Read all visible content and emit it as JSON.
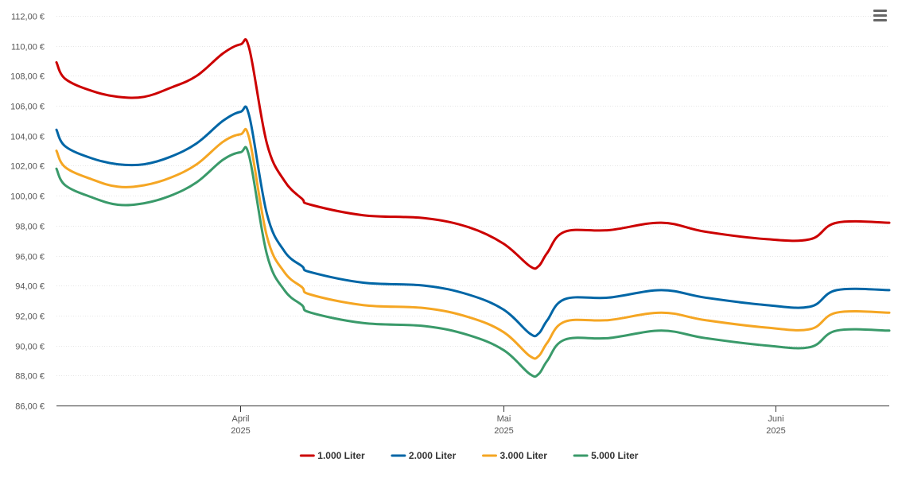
{
  "chart_data": {
    "type": "line",
    "title": "",
    "xlabel": "",
    "ylabel": "",
    "ylim": [
      86,
      112
    ],
    "y_ticks": [
      "86,00 €",
      "88,00 €",
      "90,00 €",
      "92,00 €",
      "94,00 €",
      "96,00 €",
      "98,00 €",
      "100,00 €",
      "102,00 €",
      "104,00 €",
      "106,00 €",
      "108,00 €",
      "110,00 €",
      "112,00 €"
    ],
    "y_tick_values": [
      86,
      88,
      90,
      92,
      94,
      96,
      98,
      100,
      102,
      104,
      106,
      108,
      110,
      112
    ],
    "x_range": [
      "2025-03-11",
      "2025-06-14"
    ],
    "x_ticks": [
      {
        "date": "2025-04-01",
        "month": "April",
        "year": "2025"
      },
      {
        "date": "2025-05-01",
        "month": "Mai",
        "year": "2025"
      },
      {
        "date": "2025-06-01",
        "month": "Juni",
        "year": "2025"
      }
    ],
    "grid": true,
    "legend_position": "bottom-center",
    "series": [
      {
        "name": "1.000 Liter",
        "color": "#cc0000",
        "points": [
          [
            "2025-03-11",
            108.9
          ],
          [
            "2025-03-12",
            107.8
          ],
          [
            "2025-03-15",
            107.0
          ],
          [
            "2025-03-18",
            106.6
          ],
          [
            "2025-03-21",
            106.6
          ],
          [
            "2025-03-24",
            107.2
          ],
          [
            "2025-03-27",
            108.0
          ],
          [
            "2025-03-30",
            109.5
          ],
          [
            "2025-04-01",
            110.1
          ],
          [
            "2025-04-02",
            109.8
          ],
          [
            "2025-04-04",
            103.5
          ],
          [
            "2025-04-06",
            101.0
          ],
          [
            "2025-04-08",
            99.8
          ],
          [
            "2025-04-09",
            99.4
          ],
          [
            "2025-04-15",
            98.7
          ],
          [
            "2025-04-22",
            98.5
          ],
          [
            "2025-04-27",
            97.9
          ],
          [
            "2025-05-01",
            96.8
          ],
          [
            "2025-05-04",
            95.3
          ],
          [
            "2025-05-05",
            95.3
          ],
          [
            "2025-05-06",
            96.2
          ],
          [
            "2025-05-08",
            97.6
          ],
          [
            "2025-05-13",
            97.7
          ],
          [
            "2025-05-19",
            98.2
          ],
          [
            "2025-05-24",
            97.6
          ],
          [
            "2025-05-31",
            97.1
          ],
          [
            "2025-06-05",
            97.1
          ],
          [
            "2025-06-08",
            98.2
          ],
          [
            "2025-06-14",
            98.2
          ]
        ]
      },
      {
        "name": "2.000 Liter",
        "color": "#0066a6",
        "points": [
          [
            "2025-03-11",
            104.4
          ],
          [
            "2025-03-12",
            103.3
          ],
          [
            "2025-03-15",
            102.5
          ],
          [
            "2025-03-18",
            102.1
          ],
          [
            "2025-03-21",
            102.1
          ],
          [
            "2025-03-24",
            102.6
          ],
          [
            "2025-03-27",
            103.5
          ],
          [
            "2025-03-30",
            105.0
          ],
          [
            "2025-04-01",
            105.6
          ],
          [
            "2025-04-02",
            105.3
          ],
          [
            "2025-04-04",
            98.8
          ],
          [
            "2025-04-06",
            96.3
          ],
          [
            "2025-04-08",
            95.3
          ],
          [
            "2025-04-09",
            94.9
          ],
          [
            "2025-04-15",
            94.2
          ],
          [
            "2025-04-22",
            94.0
          ],
          [
            "2025-04-27",
            93.4
          ],
          [
            "2025-05-01",
            92.4
          ],
          [
            "2025-05-04",
            90.8
          ],
          [
            "2025-05-05",
            90.8
          ],
          [
            "2025-05-06",
            91.7
          ],
          [
            "2025-05-08",
            93.1
          ],
          [
            "2025-05-13",
            93.2
          ],
          [
            "2025-05-19",
            93.7
          ],
          [
            "2025-05-24",
            93.2
          ],
          [
            "2025-05-31",
            92.7
          ],
          [
            "2025-06-05",
            92.6
          ],
          [
            "2025-06-08",
            93.7
          ],
          [
            "2025-06-14",
            93.7
          ]
        ]
      },
      {
        "name": "3.000 Liter",
        "color": "#f5a623",
        "points": [
          [
            "2025-03-11",
            103.0
          ],
          [
            "2025-03-12",
            101.9
          ],
          [
            "2025-03-15",
            101.1
          ],
          [
            "2025-03-18",
            100.6
          ],
          [
            "2025-03-21",
            100.7
          ],
          [
            "2025-03-24",
            101.2
          ],
          [
            "2025-03-27",
            102.1
          ],
          [
            "2025-03-30",
            103.6
          ],
          [
            "2025-04-01",
            104.1
          ],
          [
            "2025-04-02",
            103.8
          ],
          [
            "2025-04-04",
            97.3
          ],
          [
            "2025-04-06",
            94.9
          ],
          [
            "2025-04-08",
            93.9
          ],
          [
            "2025-04-09",
            93.4
          ],
          [
            "2025-04-15",
            92.7
          ],
          [
            "2025-04-22",
            92.5
          ],
          [
            "2025-04-27",
            91.9
          ],
          [
            "2025-05-01",
            90.9
          ],
          [
            "2025-05-04",
            89.3
          ],
          [
            "2025-05-05",
            89.3
          ],
          [
            "2025-05-06",
            90.2
          ],
          [
            "2025-05-08",
            91.6
          ],
          [
            "2025-05-13",
            91.7
          ],
          [
            "2025-05-19",
            92.2
          ],
          [
            "2025-05-24",
            91.7
          ],
          [
            "2025-05-31",
            91.2
          ],
          [
            "2025-06-05",
            91.1
          ],
          [
            "2025-06-08",
            92.2
          ],
          [
            "2025-06-14",
            92.2
          ]
        ]
      },
      {
        "name": "5.000 Liter",
        "color": "#3a9a6a",
        "points": [
          [
            "2025-03-11",
            101.8
          ],
          [
            "2025-03-12",
            100.7
          ],
          [
            "2025-03-15",
            99.9
          ],
          [
            "2025-03-18",
            99.4
          ],
          [
            "2025-03-21",
            99.5
          ],
          [
            "2025-03-24",
            100.0
          ],
          [
            "2025-03-27",
            100.9
          ],
          [
            "2025-03-30",
            102.4
          ],
          [
            "2025-04-01",
            102.9
          ],
          [
            "2025-04-02",
            102.6
          ],
          [
            "2025-04-04",
            96.1
          ],
          [
            "2025-04-06",
            93.7
          ],
          [
            "2025-04-08",
            92.7
          ],
          [
            "2025-04-09",
            92.2
          ],
          [
            "2025-04-15",
            91.5
          ],
          [
            "2025-04-22",
            91.3
          ],
          [
            "2025-04-27",
            90.7
          ],
          [
            "2025-05-01",
            89.7
          ],
          [
            "2025-05-04",
            88.1
          ],
          [
            "2025-05-05",
            88.1
          ],
          [
            "2025-05-06",
            89.0
          ],
          [
            "2025-05-08",
            90.4
          ],
          [
            "2025-05-13",
            90.5
          ],
          [
            "2025-05-19",
            91.0
          ],
          [
            "2025-05-24",
            90.5
          ],
          [
            "2025-05-31",
            90.0
          ],
          [
            "2025-06-05",
            89.9
          ],
          [
            "2025-06-08",
            91.0
          ],
          [
            "2025-06-14",
            91.0
          ]
        ]
      }
    ]
  },
  "menu": {
    "icon": "hamburger-menu-icon"
  }
}
